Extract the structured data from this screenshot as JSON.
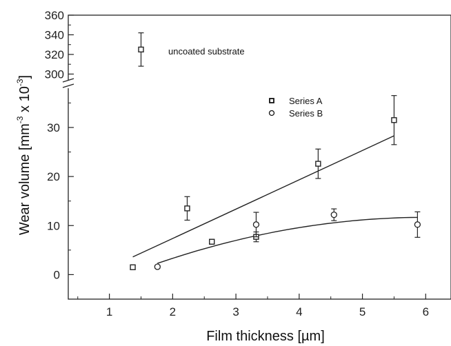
{
  "chart_data": {
    "type": "scatter",
    "xlabel": "Film thickness [µm]",
    "ylabel": "Wear volume [mm",
    "ylabel_sup1": "-3",
    "ylabel_mid": " x 10",
    "ylabel_sup2": "-3",
    "ylabel_end": "]",
    "xlim": [
      0.35,
      6.4
    ],
    "ylim_lower": [
      -5,
      38
    ],
    "ylim_upper": [
      294,
      360
    ],
    "axis_break": true,
    "x_ticks": [
      1,
      2,
      3,
      4,
      5,
      6
    ],
    "y_ticks_lower": [
      0,
      10,
      20,
      30
    ],
    "y_ticks_upper": [
      300,
      320,
      340,
      360
    ],
    "legend_position": "upper-center",
    "series": [
      {
        "name": "Series A",
        "marker": "square",
        "points": [
          {
            "x": 1.37,
            "y": 1.5,
            "err": 0.4
          },
          {
            "x": 2.23,
            "y": 13.5,
            "err": 2.4
          },
          {
            "x": 2.62,
            "y": 6.7,
            "err": 0.5
          },
          {
            "x": 3.32,
            "y": 7.7,
            "err": 1.0
          },
          {
            "x": 4.3,
            "y": 22.6,
            "err": 3.0
          },
          {
            "x": 5.5,
            "y": 31.5,
            "err": 5.0
          }
        ],
        "fit": {
          "kind": "linear",
          "x_start": 1.37,
          "x_end": 5.5,
          "y_start": 3.6,
          "y_end": 28.3
        }
      },
      {
        "name": "Series B",
        "marker": "circle",
        "points": [
          {
            "x": 1.76,
            "y": 1.6,
            "err": 0.3
          },
          {
            "x": 3.32,
            "y": 10.2,
            "err": 2.5
          },
          {
            "x": 4.55,
            "y": 12.2,
            "err": 1.2
          },
          {
            "x": 5.87,
            "y": 10.2,
            "err": 2.6
          }
        ],
        "fit": {
          "kind": "quadratic",
          "x_start": 1.76,
          "x_end": 5.87,
          "coef": [
            -7.1,
            6.25,
            -0.52
          ]
        }
      }
    ],
    "outlier": {
      "x": 1.5,
      "y": 325,
      "err_low": 17,
      "err_high": 17,
      "marker": "square"
    },
    "annotation": "uncoated substrate"
  }
}
